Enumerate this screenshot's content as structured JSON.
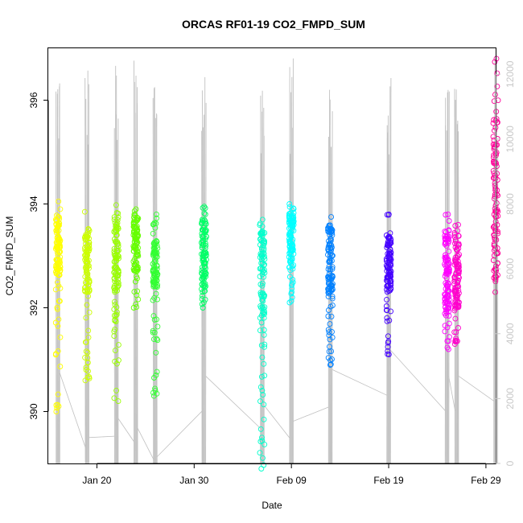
{
  "chart_data": {
    "type": "scatter",
    "title": "ORCAS RF01-19 CO2_FMPD_SUM",
    "xlabel": "Date",
    "ylabel": "CO2_FMPD_SUM",
    "x_axis": {
      "type": "date",
      "range": [
        "2016-01-15",
        "2016-03-01"
      ],
      "ticks": [
        {
          "date": "2016-01-20",
          "label": "Jan 20"
        },
        {
          "date": "2016-01-30",
          "label": "Jan 30"
        },
        {
          "date": "2016-02-09",
          "label": "Feb 09"
        },
        {
          "date": "2016-02-19",
          "label": "Feb 19"
        },
        {
          "date": "2016-02-29",
          "label": "Feb 29"
        }
      ]
    },
    "y_axis": {
      "range": [
        389,
        397
      ],
      "ticks": [
        390,
        392,
        394,
        396
      ]
    },
    "y2_axis": {
      "range": [
        0,
        12800
      ],
      "ticks": [
        0,
        2000,
        4000,
        6000,
        8000,
        10000,
        12000
      ],
      "color": "#c8c8c8"
    },
    "grid": false,
    "legend": "none",
    "altitude_color": "#c0c0c0",
    "flights": [
      {
        "date": "2016-01-16",
        "color": "#ffff00",
        "co2_min": 390.0,
        "co2_max": 394.05,
        "core": [
          392.6,
          393.8
        ],
        "alt_end": 2800
      },
      {
        "date": "2016-01-19",
        "color": "#ccff00",
        "co2_min": 390.6,
        "co2_max": 393.85,
        "core": [
          392.3,
          393.5
        ],
        "alt_end": 800
      },
      {
        "date": "2016-01-22",
        "color": "#99ff00",
        "co2_min": 390.2,
        "co2_max": 393.98,
        "core": [
          392.0,
          393.7
        ],
        "alt_end": 1400
      },
      {
        "date": "2016-01-24",
        "color": "#66ff00",
        "co2_min": 392.0,
        "co2_max": 393.9,
        "core": [
          392.7,
          393.8
        ],
        "alt_end": 1100
      },
      {
        "date": "2016-01-26",
        "color": "#33ff33",
        "co2_min": 390.3,
        "co2_max": 393.8,
        "core": [
          392.4,
          393.3
        ],
        "alt_end": 200
      },
      {
        "date": "2016-01-31",
        "color": "#00ff66",
        "co2_min": 392.0,
        "co2_max": 393.95,
        "core": [
          392.3,
          393.7
        ],
        "alt_end": 2700
      },
      {
        "date": "2016-02-06",
        "color": "#00ffcc",
        "co2_min": 388.9,
        "co2_max": 393.7,
        "core": [
          391.8,
          393.5
        ],
        "alt_end": 1800
      },
      {
        "date": "2016-02-09",
        "color": "#00ffff",
        "co2_min": 392.1,
        "co2_max": 394.0,
        "core": [
          392.7,
          393.8
        ],
        "alt_end": 1300
      },
      {
        "date": "2016-02-13",
        "color": "#0080ff",
        "co2_min": 390.9,
        "co2_max": 393.75,
        "core": [
          392.2,
          393.6
        ],
        "alt_end": 2900
      },
      {
        "date": "2016-02-19",
        "color": "#4400ff",
        "co2_min": 391.1,
        "co2_max": 393.8,
        "core": [
          392.3,
          393.4
        ],
        "alt_end": 3500
      },
      {
        "date": "2016-02-25",
        "color": "#ff00ff",
        "co2_min": 391.2,
        "co2_max": 393.8,
        "core": [
          391.8,
          393.5
        ],
        "alt_end": 2700
      },
      {
        "date": "2016-02-26",
        "color": "#ff00cc",
        "co2_min": 391.3,
        "co2_max": 393.6,
        "core": [
          392.0,
          393.4
        ],
        "alt_end": 2700
      },
      {
        "date": "2016-03-01",
        "color": "#ff0099",
        "co2_min": 392.3,
        "co2_max": 396.8,
        "core": [
          392.5,
          395.3
        ],
        "alt_end": 3200
      }
    ]
  }
}
